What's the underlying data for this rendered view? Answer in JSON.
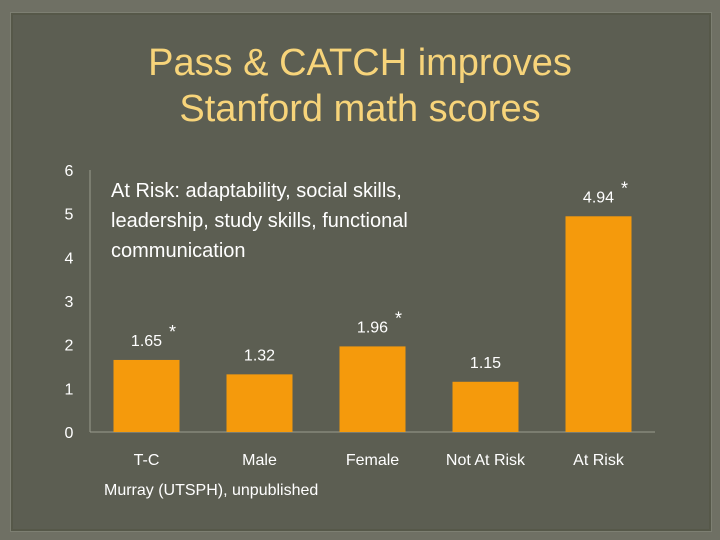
{
  "slide": {
    "title_line1": "Pass & CATCH improves",
    "title_line2": "Stanford math scores",
    "note": "At Risk: adaptability, social skills, leadership, study skills, functional communication",
    "source": "Murray (UTSPH), unpublished"
  },
  "colors": {
    "bar": "#f59a0c",
    "text": "#ffffff",
    "title": "#f7d47a",
    "axis": "#9a9c8f"
  },
  "chart_data": {
    "type": "bar",
    "title": "",
    "xlabel": "",
    "ylabel": "",
    "categories": [
      "T-C",
      "Male",
      "Female",
      "Not At Risk",
      "At Risk"
    ],
    "values": [
      1.65,
      1.32,
      1.96,
      1.15,
      4.94
    ],
    "value_labels": [
      "1.65",
      "1.32",
      "1.96",
      "1.15",
      "4.94"
    ],
    "significant": [
      true,
      false,
      true,
      false,
      true
    ],
    "significance_marker": "*",
    "ylim": [
      0,
      6
    ],
    "yticks": [
      "0",
      "1",
      "2",
      "3",
      "4",
      "5",
      "6"
    ],
    "grid": false,
    "legend": "none"
  }
}
